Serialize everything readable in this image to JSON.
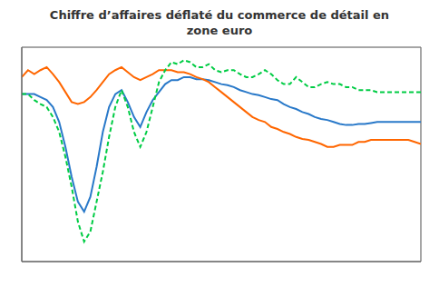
{
  "chart_data": {
    "type": "line",
    "title": "Chiffre d’affaires déflaté du commerce de détail en\nzone euro",
    "x": [
      0,
      1,
      2,
      3,
      4,
      5,
      6,
      7,
      8,
      9,
      10,
      11,
      12,
      13,
      14,
      15,
      16,
      17,
      18,
      19,
      20,
      21,
      22,
      23,
      24,
      25,
      26,
      27,
      28,
      29,
      30,
      31,
      32,
      33,
      34,
      35,
      36,
      37,
      38,
      39,
      40,
      41,
      42,
      43,
      44,
      45,
      46,
      47,
      48,
      49,
      50,
      51,
      52,
      53,
      54,
      55,
      56,
      57,
      58,
      59,
      60,
      61,
      62,
      63,
      64
    ],
    "series": [
      {
        "color": "#2979c9",
        "line_style": "solid",
        "values": [
          0.18,
          0.18,
          0.18,
          0.15,
          0.12,
          0.05,
          -0.1,
          -0.35,
          -0.65,
          -0.9,
          -1.0,
          -0.85,
          -0.55,
          -0.2,
          0.05,
          0.18,
          0.22,
          0.1,
          -0.05,
          -0.15,
          0.0,
          0.12,
          0.2,
          0.28,
          0.32,
          0.32,
          0.35,
          0.35,
          0.33,
          0.33,
          0.32,
          0.3,
          0.28,
          0.27,
          0.25,
          0.22,
          0.2,
          0.18,
          0.17,
          0.15,
          0.13,
          0.12,
          0.08,
          0.05,
          0.03,
          0.0,
          -0.02,
          -0.05,
          -0.07,
          -0.08,
          -0.1,
          -0.12,
          -0.13,
          -0.13,
          -0.12,
          -0.12,
          -0.11,
          -0.1,
          -0.1,
          -0.1,
          -0.1,
          -0.1,
          -0.1,
          -0.1,
          -0.1
        ]
      },
      {
        "color": "#ff6600",
        "line_style": "solid",
        "values": [
          0.35,
          0.42,
          0.38,
          0.42,
          0.45,
          0.38,
          0.3,
          0.2,
          0.1,
          0.08,
          0.1,
          0.15,
          0.22,
          0.3,
          0.38,
          0.42,
          0.45,
          0.4,
          0.35,
          0.32,
          0.35,
          0.38,
          0.42,
          0.42,
          0.42,
          0.4,
          0.4,
          0.38,
          0.35,
          0.33,
          0.3,
          0.25,
          0.2,
          0.15,
          0.1,
          0.05,
          0.0,
          -0.05,
          -0.08,
          -0.1,
          -0.15,
          -0.17,
          -0.2,
          -0.22,
          -0.25,
          -0.27,
          -0.28,
          -0.3,
          -0.32,
          -0.35,
          -0.35,
          -0.33,
          -0.33,
          -0.33,
          -0.3,
          -0.3,
          -0.28,
          -0.28,
          -0.28,
          -0.28,
          -0.28,
          -0.28,
          -0.28,
          -0.3,
          -0.32
        ]
      },
      {
        "color": "#00cc44",
        "line_style": "dashed",
        "values": [
          0.18,
          0.18,
          0.12,
          0.08,
          0.05,
          -0.05,
          -0.2,
          -0.45,
          -0.75,
          -1.1,
          -1.3,
          -1.2,
          -0.9,
          -0.6,
          -0.25,
          0.05,
          0.22,
          0.05,
          -0.2,
          -0.35,
          -0.2,
          0.05,
          0.3,
          0.42,
          0.5,
          0.48,
          0.52,
          0.5,
          0.45,
          0.45,
          0.48,
          0.42,
          0.4,
          0.42,
          0.42,
          0.38,
          0.35,
          0.35,
          0.38,
          0.42,
          0.38,
          0.32,
          0.28,
          0.28,
          0.35,
          0.3,
          0.25,
          0.25,
          0.28,
          0.3,
          0.28,
          0.28,
          0.25,
          0.25,
          0.22,
          0.22,
          0.22,
          0.2,
          0.2,
          0.2,
          0.2,
          0.2,
          0.2,
          0.2,
          0.2
        ]
      }
    ],
    "xlim": [
      0,
      64
    ],
    "xticks": [
      16,
      31,
      47,
      62
    ],
    "ylim": [
      -1.5,
      0.65
    ],
    "yticks": [
      -1.5,
      -1.25,
      -1.0,
      -0.75,
      -0.5,
      -0.25,
      0,
      0.25,
      0.5
    ],
    "grid": true,
    "tick_labels": false
  }
}
